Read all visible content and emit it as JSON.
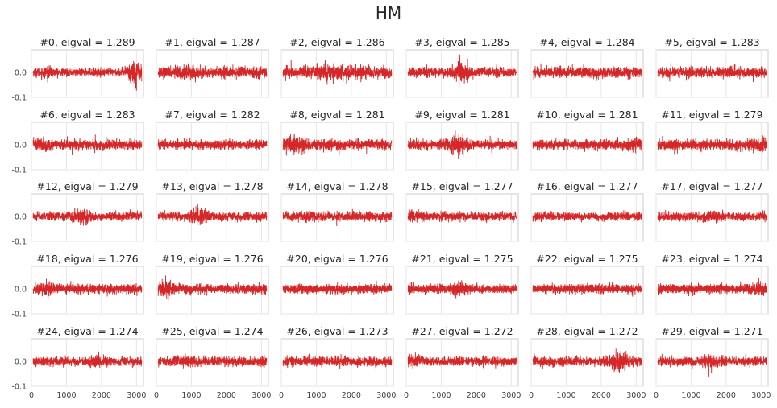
{
  "title": "HM",
  "chart_data": {
    "type": "line",
    "layout": {
      "rows": 5,
      "cols": 6,
      "sharex": true,
      "sharey": true
    },
    "color": "#d62728",
    "xlim": [
      0,
      3200
    ],
    "ylim": [
      -0.1,
      0.09
    ],
    "xticks": [
      0,
      1000,
      2000,
      3000
    ],
    "xtick_labels": [
      "0",
      "1000",
      "2000",
      "3000"
    ],
    "yticks": [
      0.0,
      -0.1
    ],
    "ytick_labels": [
      "0.0",
      "-0.1"
    ],
    "grid": true,
    "panels": [
      {
        "title": "#0, eigval = 1.289",
        "amp": 0.018,
        "bursts": [
          [
            2950,
            200,
            0.045
          ],
          [
            400,
            250,
            0.01
          ]
        ]
      },
      {
        "title": "#1, eigval = 1.287",
        "amp": 0.025,
        "bursts": [
          [
            900,
            300,
            0.01
          ]
        ]
      },
      {
        "title": "#2, eigval = 1.286",
        "amp": 0.027,
        "bursts": [
          [
            1300,
            400,
            0.012
          ]
        ]
      },
      {
        "title": "#3, eigval = 1.285",
        "amp": 0.022,
        "bursts": [
          [
            1550,
            200,
            0.035
          ]
        ]
      },
      {
        "title": "#4, eigval = 1.284",
        "amp": 0.025,
        "bursts": []
      },
      {
        "title": "#5, eigval = 1.283",
        "amp": 0.025,
        "bursts": []
      },
      {
        "title": "#6, eigval = 1.283",
        "amp": 0.024,
        "bursts": [
          [
            300,
            200,
            0.01
          ]
        ]
      },
      {
        "title": "#7, eigval = 1.282",
        "amp": 0.022,
        "bursts": []
      },
      {
        "title": "#8, eigval = 1.281",
        "amp": 0.024,
        "bursts": [
          [
            400,
            300,
            0.015
          ]
        ]
      },
      {
        "title": "#9, eigval = 1.281",
        "amp": 0.023,
        "bursts": [
          [
            1500,
            250,
            0.03
          ]
        ]
      },
      {
        "title": "#10, eigval = 1.281",
        "amp": 0.022,
        "bursts": [
          [
            3000,
            250,
            0.012
          ]
        ]
      },
      {
        "title": "#11, eigval = 1.279",
        "amp": 0.025,
        "bursts": [
          [
            3000,
            250,
            0.015
          ]
        ]
      },
      {
        "title": "#12, eigval = 1.279",
        "amp": 0.02,
        "bursts": [
          [
            1400,
            300,
            0.015
          ]
        ]
      },
      {
        "title": "#13, eigval = 1.278",
        "amp": 0.02,
        "bursts": [
          [
            1250,
            250,
            0.02
          ]
        ]
      },
      {
        "title": "#14, eigval = 1.278",
        "amp": 0.022,
        "bursts": []
      },
      {
        "title": "#15, eigval = 1.277",
        "amp": 0.02,
        "bursts": [
          [
            100,
            200,
            0.015
          ]
        ]
      },
      {
        "title": "#16, eigval = 1.277",
        "amp": 0.02,
        "bursts": []
      },
      {
        "title": "#17, eigval = 1.277",
        "amp": 0.02,
        "bursts": [
          [
            1600,
            300,
            0.01
          ]
        ]
      },
      {
        "title": "#18, eigval = 1.276",
        "amp": 0.022,
        "bursts": [
          [
            400,
            200,
            0.015
          ]
        ]
      },
      {
        "title": "#19, eigval = 1.276",
        "amp": 0.022,
        "bursts": [
          [
            250,
            200,
            0.02
          ]
        ]
      },
      {
        "title": "#20, eigval = 1.276",
        "amp": 0.022,
        "bursts": []
      },
      {
        "title": "#21, eigval = 1.275",
        "amp": 0.02,
        "bursts": [
          [
            1500,
            200,
            0.02
          ]
        ]
      },
      {
        "title": "#22, eigval = 1.275",
        "amp": 0.02,
        "bursts": []
      },
      {
        "title": "#23, eigval = 1.274",
        "amp": 0.022,
        "bursts": [
          [
            3000,
            200,
            0.015
          ]
        ]
      },
      {
        "title": "#24, eigval = 1.274",
        "amp": 0.02,
        "bursts": [
          [
            1900,
            300,
            0.01
          ]
        ]
      },
      {
        "title": "#25, eigval = 1.274",
        "amp": 0.022,
        "bursts": [
          [
            900,
            300,
            0.01
          ]
        ]
      },
      {
        "title": "#26, eigval = 1.273",
        "amp": 0.022,
        "bursts": []
      },
      {
        "title": "#27, eigval = 1.272",
        "amp": 0.02,
        "bursts": [
          [
            200,
            200,
            0.015
          ]
        ]
      },
      {
        "title": "#28, eigval = 1.272",
        "amp": 0.022,
        "bursts": [
          [
            2500,
            200,
            0.03
          ]
        ]
      },
      {
        "title": "#29, eigval = 1.271",
        "amp": 0.02,
        "bursts": [
          [
            1600,
            300,
            0.015
          ]
        ]
      }
    ]
  }
}
